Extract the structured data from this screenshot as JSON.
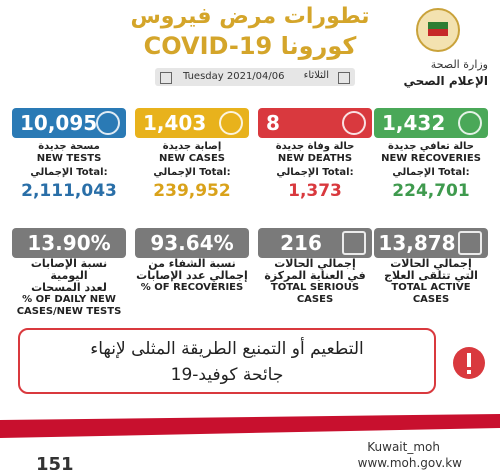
{
  "header": {
    "title_line1": "تطورات مرض فيروس",
    "title_line2": "كورونا COVID-19",
    "date": "Tuesday 2021/04/06",
    "weekday": "الثلاثاء",
    "ministry": "وزارة الصحة",
    "department": "الإعلام الصحي"
  },
  "daily_cards": [
    {
      "value": "10,095",
      "label_ar": "مسحة جديدة",
      "label_en": "NEW TESTS",
      "total_label": "الإجمالي Total:",
      "total": "2,111,043"
    },
    {
      "value": "1,403",
      "label_ar": "إصابة جديدة",
      "label_en": "NEW CASES",
      "total_label": "الإجمالي Total:",
      "total": "239,952"
    },
    {
      "value": "8",
      "label_ar": "حالة وفاة جديدة",
      "label_en": "NEW DEATHS",
      "total_label": "الإجمالي Total:",
      "total": "1,373"
    },
    {
      "value": "1,432",
      "label_ar": "حالة تعافي جديدة",
      "label_en": "NEW RECOVERIES",
      "total_label": "الإجمالي Total:",
      "total": "224,701"
    }
  ],
  "summary_cards": [
    {
      "value": "13.90%",
      "label_ar": [
        "نسبة الإصابات اليومية",
        "لعدد المسحات"
      ],
      "label_en": [
        "% OF DAILY NEW",
        "CASES/NEW TESTS"
      ]
    },
    {
      "value": "93.64%",
      "label_ar": [
        "نسبة الشفاء من",
        "إجمالي عدد الإصابات"
      ],
      "label_en": [
        "% OF RECOVERIES"
      ]
    },
    {
      "value": "216",
      "label_ar": [
        "إجمالي الحالات",
        "في العناية المركزة"
      ],
      "label_en": [
        "TOTAL SERIOUS CASES"
      ]
    },
    {
      "value": "13,878",
      "label_ar": [
        "إجمالي الحالات",
        "التي تتلقى العلاج"
      ],
      "label_en": [
        "TOTAL ACTIVE CASES"
      ]
    }
  ],
  "banner": {
    "line1": "التطعيم أو التمنيع الطريقة المثلى لإنهاء",
    "line2": "جائحة كوفيد-19"
  },
  "footer": {
    "social": "Kuwait_moh",
    "website": "www.moh.gov.kw",
    "hotline": "151"
  }
}
